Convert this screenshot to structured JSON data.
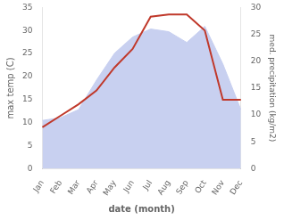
{
  "chart_data": {
    "type": "line",
    "categories": [
      "Jan",
      "Feb",
      "Mar",
      "Apr",
      "May",
      "Jun",
      "Jul",
      "Aug",
      "Sep",
      "Oct",
      "Nov",
      "Dec"
    ],
    "xlabel": "date (month)",
    "ylabel": "max temp (C)",
    "y2label": "med. precipitation (kg/m2)",
    "series": [
      {
        "type": "area",
        "axis": "y2",
        "color": "#c8d0f0",
        "values": [
          9.0,
          9.5,
          11.0,
          16.5,
          21.5,
          24.5,
          26.0,
          25.5,
          23.5,
          26.5,
          19.5,
          11.0
        ]
      },
      {
        "type": "line",
        "color": "#c0392b",
        "values": [
          9.0,
          11.5,
          14.0,
          17.0,
          22.0,
          26.0,
          33.0,
          33.5,
          33.5,
          30.0,
          15.0,
          15.0
        ]
      }
    ],
    "ylim": [
      0,
      35
    ],
    "yticks": [
      0,
      5,
      10,
      15,
      20,
      25,
      30,
      35
    ],
    "y2lim": [
      0,
      30
    ],
    "y2ticks": [
      0,
      5,
      10,
      15,
      20,
      25,
      30
    ],
    "grid": false
  }
}
